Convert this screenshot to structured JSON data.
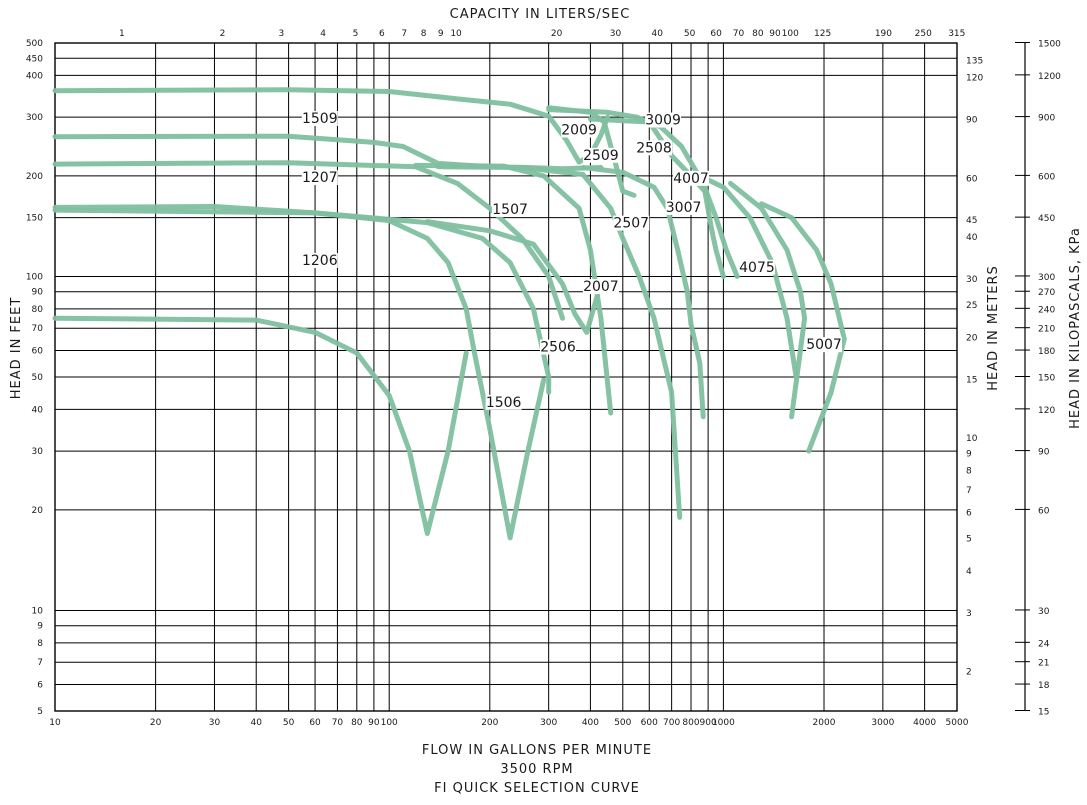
{
  "chart_data": {
    "type": "line",
    "title": "",
    "subtitles": [
      "3500 RPM",
      "FI QUICK SELECTION CURVE"
    ],
    "xlabel": "FLOW IN GALLONS PER MINUTE",
    "x2label": "CAPACITY IN LITERS/SEC",
    "ylabel": "HEAD IN FEET",
    "y2label": "HEAD IN METERS",
    "y3label": "HEAD IN KILOPASCALS, KPa",
    "xscale": "log",
    "yscale": "log",
    "xlim": [
      10,
      5000
    ],
    "ylim": [
      5,
      500
    ],
    "grid": true,
    "curve_color": "#7fbf9f",
    "x_ticks": [
      {
        "v": 10,
        "t": "10"
      },
      {
        "v": 20,
        "t": "20"
      },
      {
        "v": 30,
        "t": "30"
      },
      {
        "v": 40,
        "t": "40"
      },
      {
        "v": 50,
        "t": "50"
      },
      {
        "v": 60,
        "t": "60"
      },
      {
        "v": 70,
        "t": "70"
      },
      {
        "v": 80,
        "t": "80"
      },
      {
        "v": 90,
        "t": "90"
      },
      {
        "v": 100,
        "t": "100"
      },
      {
        "v": 200,
        "t": "200"
      },
      {
        "v": 300,
        "t": "300"
      },
      {
        "v": 400,
        "t": "400"
      },
      {
        "v": 500,
        "t": "500"
      },
      {
        "v": 600,
        "t": "600"
      },
      {
        "v": 700,
        "t": "700"
      },
      {
        "v": 800,
        "t": "800"
      },
      {
        "v": 900,
        "t": "900"
      },
      {
        "v": 1000,
        "t": "1000"
      },
      {
        "v": 2000,
        "t": "2000"
      },
      {
        "v": 3000,
        "t": "3000"
      },
      {
        "v": 4000,
        "t": "4000"
      },
      {
        "v": 5000,
        "t": "5000"
      }
    ],
    "x2_ticks": [
      {
        "v": 1,
        "t": "1"
      },
      {
        "v": 2,
        "t": "2"
      },
      {
        "v": 3,
        "t": "3"
      },
      {
        "v": 4,
        "t": "4"
      },
      {
        "v": 5,
        "t": "5"
      },
      {
        "v": 6,
        "t": "6"
      },
      {
        "v": 7,
        "t": "7"
      },
      {
        "v": 8,
        "t": "8"
      },
      {
        "v": 9,
        "t": "9"
      },
      {
        "v": 10,
        "t": "10"
      },
      {
        "v": 20,
        "t": "20"
      },
      {
        "v": 30,
        "t": "30"
      },
      {
        "v": 40,
        "t": "40"
      },
      {
        "v": 50,
        "t": "50"
      },
      {
        "v": 60,
        "t": "60"
      },
      {
        "v": 70,
        "t": "70"
      },
      {
        "v": 80,
        "t": "80"
      },
      {
        "v": 90,
        "t": "90"
      },
      {
        "v": 100,
        "t": "100"
      },
      {
        "v": 125,
        "t": "125"
      },
      {
        "v": 190,
        "t": "190"
      },
      {
        "v": 250,
        "t": "250"
      },
      {
        "v": 315,
        "t": "315"
      }
    ],
    "y_ticks": [
      {
        "v": 5,
        "t": "5"
      },
      {
        "v": 6,
        "t": "6"
      },
      {
        "v": 7,
        "t": "7"
      },
      {
        "v": 8,
        "t": "8"
      },
      {
        "v": 9,
        "t": "9"
      },
      {
        "v": 10,
        "t": "10"
      },
      {
        "v": 20,
        "t": "20"
      },
      {
        "v": 30,
        "t": "30"
      },
      {
        "v": 40,
        "t": "40"
      },
      {
        "v": 50,
        "t": "50"
      },
      {
        "v": 60,
        "t": "60"
      },
      {
        "v": 70,
        "t": "70"
      },
      {
        "v": 80,
        "t": "80"
      },
      {
        "v": 90,
        "t": "90"
      },
      {
        "v": 100,
        "t": "100"
      },
      {
        "v": 150,
        "t": "150"
      },
      {
        "v": 200,
        "t": "200"
      },
      {
        "v": 300,
        "t": "300"
      },
      {
        "v": 400,
        "t": "400"
      },
      {
        "v": 450,
        "t": "450"
      },
      {
        "v": 500,
        "t": "500"
      }
    ],
    "y2_ticks": [
      {
        "v": 2,
        "t": "2"
      },
      {
        "v": 3,
        "t": "3"
      },
      {
        "v": 4,
        "t": "4"
      },
      {
        "v": 5,
        "t": "5"
      },
      {
        "v": 6,
        "t": "6"
      },
      {
        "v": 7,
        "t": "7"
      },
      {
        "v": 8,
        "t": "8"
      },
      {
        "v": 9,
        "t": "9"
      },
      {
        "v": 10,
        "t": "10"
      },
      {
        "v": 15,
        "t": "15"
      },
      {
        "v": 20,
        "t": "20"
      },
      {
        "v": 25,
        "t": "25"
      },
      {
        "v": 30,
        "t": "30"
      },
      {
        "v": 40,
        "t": "40"
      },
      {
        "v": 45,
        "t": "45"
      },
      {
        "v": 60,
        "t": "60"
      },
      {
        "v": 90,
        "t": "90"
      },
      {
        "v": 120,
        "t": "120"
      },
      {
        "v": 135,
        "t": "135"
      }
    ],
    "y3_ticks": [
      {
        "v": 15,
        "t": "15"
      },
      {
        "v": 18,
        "t": "18"
      },
      {
        "v": 21,
        "t": "21"
      },
      {
        "v": 24,
        "t": "24"
      },
      {
        "v": 30,
        "t": "30"
      },
      {
        "v": 60,
        "t": "60"
      },
      {
        "v": 90,
        "t": "90"
      },
      {
        "v": 120,
        "t": "120"
      },
      {
        "v": 150,
        "t": "150"
      },
      {
        "v": 180,
        "t": "180"
      },
      {
        "v": 210,
        "t": "210"
      },
      {
        "v": 240,
        "t": "240"
      },
      {
        "v": 270,
        "t": "270"
      },
      {
        "v": 300,
        "t": "300"
      },
      {
        "v": 450,
        "t": "450"
      },
      {
        "v": 600,
        "t": "600"
      },
      {
        "v": 900,
        "t": "900"
      },
      {
        "v": 1200,
        "t": "1200"
      },
      {
        "v": 1500,
        "t": "1500"
      }
    ],
    "series": [
      {
        "name": "1506",
        "points": [
          [
            10,
            75
          ],
          [
            40,
            74
          ],
          [
            60,
            68
          ],
          [
            80,
            59
          ],
          [
            100,
            44
          ],
          [
            115,
            30
          ],
          [
            130,
            17
          ],
          [
            150,
            30
          ],
          [
            170,
            59
          ]
        ]
      },
      {
        "name": "1206",
        "points": [
          [
            10,
            161
          ],
          [
            30,
            162
          ],
          [
            60,
            155
          ],
          [
            100,
            147
          ],
          [
            130,
            130
          ],
          [
            150,
            110
          ],
          [
            170,
            80
          ],
          [
            180,
            59
          ],
          [
            200,
            35
          ],
          [
            230,
            16.5
          ],
          [
            260,
            30
          ],
          [
            290,
            49
          ]
        ]
      },
      {
        "name": "2506",
        "points": [
          [
            10,
            158
          ],
          [
            60,
            155
          ],
          [
            130,
            145
          ],
          [
            190,
            130
          ],
          [
            230,
            110
          ],
          [
            270,
            80
          ],
          [
            300,
            50
          ],
          [
            300,
            45
          ]
        ]
      },
      {
        "name": "1507",
        "points": [
          [
            130,
            146
          ],
          [
            200,
            137
          ],
          [
            270,
            125
          ],
          [
            330,
            95
          ],
          [
            360,
            77
          ],
          [
            390,
            68
          ],
          [
            420,
            88
          ]
        ]
      },
      {
        "name": "1207",
        "points": [
          [
            10,
            217
          ],
          [
            50,
            219
          ],
          [
            120,
            213
          ],
          [
            160,
            190
          ],
          [
            200,
            160
          ],
          [
            250,
            130
          ],
          [
            300,
            100
          ],
          [
            330,
            75
          ]
        ]
      },
      {
        "name": "2507",
        "points": [
          [
            120,
            215
          ],
          [
            220,
            214
          ],
          [
            290,
            200
          ],
          [
            370,
            160
          ],
          [
            400,
            120
          ],
          [
            430,
            75
          ],
          [
            460,
            39
          ]
        ]
      },
      {
        "name": "2007",
        "points": [
          [
            140,
            213
          ],
          [
            250,
            212
          ],
          [
            380,
            202
          ],
          [
            460,
            160
          ],
          [
            500,
            130
          ],
          [
            560,
            100
          ],
          [
            620,
            75
          ],
          [
            700,
            45
          ],
          [
            740,
            19
          ]
        ]
      },
      {
        "name": "3007",
        "points": [
          [
            380,
            212
          ],
          [
            500,
            205
          ],
          [
            620,
            185
          ],
          [
            680,
            160
          ],
          [
            730,
            120
          ],
          [
            780,
            90
          ],
          [
            800,
            72
          ],
          [
            850,
            55
          ],
          [
            870,
            38
          ]
        ]
      },
      {
        "name": "1509",
        "points": [
          [
            10,
            262
          ],
          [
            50,
            263
          ],
          [
            90,
            252
          ],
          [
            110,
            245
          ],
          [
            140,
            218
          ],
          [
            200,
            213
          ],
          [
            260,
            212
          ],
          [
            330,
            210
          ],
          [
            430,
            212
          ]
        ]
      },
      {
        "name": "2509",
        "points": [
          [
            10,
            360
          ],
          [
            50,
            362
          ],
          [
            100,
            358
          ],
          [
            160,
            340
          ],
          [
            230,
            328
          ],
          [
            300,
            302
          ],
          [
            340,
            255
          ],
          [
            370,
            220
          ],
          [
            400,
            230
          ],
          [
            430,
            265
          ],
          [
            450,
            300
          ]
        ]
      },
      {
        "name": "2009",
        "points": [
          [
            300,
            320
          ],
          [
            400,
            310
          ],
          [
            440,
            290
          ],
          [
            480,
            210
          ],
          [
            500,
            180
          ],
          [
            540,
            175
          ]
        ]
      },
      {
        "name": "2508",
        "points": [
          [
            400,
            296
          ],
          [
            600,
            290
          ],
          [
            700,
            230
          ],
          [
            800,
            200
          ],
          [
            880,
            180
          ],
          [
            920,
            140
          ],
          [
            950,
            120
          ],
          [
            1000,
            100
          ]
        ]
      },
      {
        "name": "3009",
        "points": [
          [
            300,
            316
          ],
          [
            450,
            310
          ],
          [
            550,
            300
          ],
          [
            650,
            280
          ],
          [
            750,
            245
          ],
          [
            870,
            190
          ],
          [
            950,
            150
          ],
          [
            1020,
            120
          ],
          [
            1100,
            100
          ]
        ]
      },
      {
        "name": "4007",
        "points": [
          [
            850,
            200
          ],
          [
            1000,
            185
          ],
          [
            1200,
            150
          ],
          [
            1400,
            110
          ],
          [
            1550,
            75
          ],
          [
            1650,
            50
          ]
        ]
      },
      {
        "name": "4075",
        "points": [
          [
            1050,
            190
          ],
          [
            1300,
            160
          ],
          [
            1550,
            120
          ],
          [
            1700,
            90
          ],
          [
            1750,
            75
          ],
          [
            1700,
            60
          ],
          [
            1600,
            38
          ]
        ]
      },
      {
        "name": "5007",
        "points": [
          [
            1300,
            165
          ],
          [
            1600,
            150
          ],
          [
            1900,
            120
          ],
          [
            2100,
            95
          ],
          [
            2300,
            65
          ],
          [
            2100,
            45
          ],
          [
            1800,
            30
          ]
        ]
      }
    ],
    "curve_labels": [
      {
        "text": "1509",
        "x": 62,
        "y": 290
      },
      {
        "text": "1207",
        "x": 62,
        "y": 193
      },
      {
        "text": "1206",
        "x": 62,
        "y": 109
      },
      {
        "text": "1507",
        "x": 230,
        "y": 155
      },
      {
        "text": "2009",
        "x": 370,
        "y": 268
      },
      {
        "text": "2509",
        "x": 430,
        "y": 225
      },
      {
        "text": "3009",
        "x": 660,
        "y": 287
      },
      {
        "text": "2508",
        "x": 620,
        "y": 237
      },
      {
        "text": "4007",
        "x": 800,
        "y": 192
      },
      {
        "text": "2507",
        "x": 530,
        "y": 141
      },
      {
        "text": "3007",
        "x": 760,
        "y": 157
      },
      {
        "text": "2007",
        "x": 430,
        "y": 91
      },
      {
        "text": "4075",
        "x": 1260,
        "y": 104
      },
      {
        "text": "2506",
        "x": 320,
        "y": 60
      },
      {
        "text": "1506",
        "x": 220,
        "y": 41
      },
      {
        "text": "5007",
        "x": 2000,
        "y": 61
      }
    ]
  }
}
